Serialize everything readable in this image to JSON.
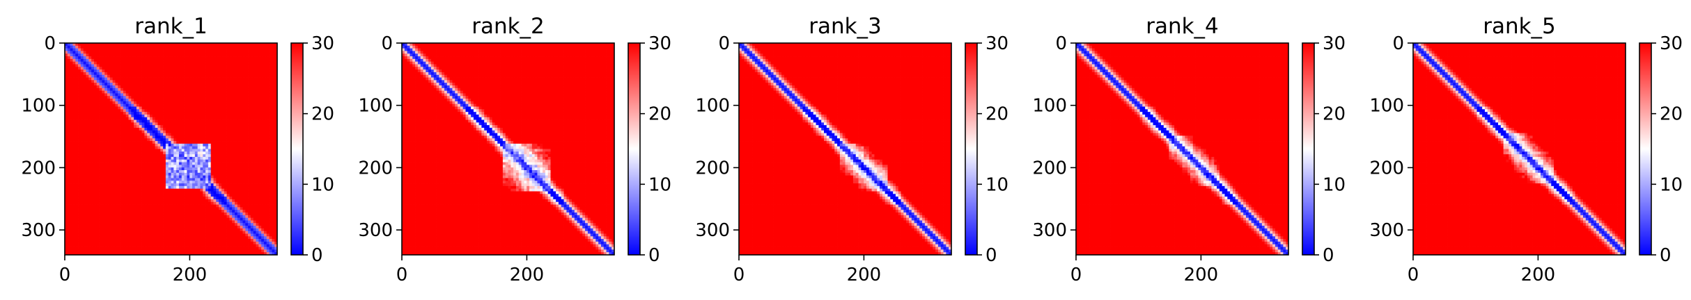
{
  "figure": {
    "background": "#ffffff"
  },
  "colormap": {
    "name": "bwr",
    "low": "#0000ff",
    "mid": "#ffffff",
    "high": "#ff0000"
  },
  "chart_data": [
    {
      "type": "heatmap",
      "title": "rank_1",
      "matrix_size": 340,
      "x_ticks": [
        0,
        200
      ],
      "y_ticks": [
        0,
        100,
        200,
        300
      ],
      "xlim": [
        0,
        340
      ],
      "ylim": [
        340,
        0
      ],
      "color_range": [
        0,
        30
      ],
      "colorbar_ticks": [
        0,
        10,
        20,
        30
      ],
      "low_distance_block": {
        "start": 160,
        "end": 235,
        "strength": 0.95
      },
      "diagonal_band_width": 9,
      "grid": false
    },
    {
      "type": "heatmap",
      "title": "rank_2",
      "matrix_size": 340,
      "x_ticks": [
        0,
        200
      ],
      "y_ticks": [
        0,
        100,
        200,
        300
      ],
      "xlim": [
        0,
        340
      ],
      "ylim": [
        340,
        0
      ],
      "color_range": [
        0,
        30
      ],
      "colorbar_ticks": [
        0,
        10,
        20,
        30
      ],
      "low_distance_block": {
        "start": 160,
        "end": 240,
        "strength": 0.6
      },
      "diagonal_band_width": 8,
      "grid": false
    },
    {
      "type": "heatmap",
      "title": "rank_3",
      "matrix_size": 340,
      "x_ticks": [
        0,
        200
      ],
      "y_ticks": [
        0,
        100,
        200,
        300
      ],
      "xlim": [
        0,
        340
      ],
      "ylim": [
        340,
        0
      ],
      "color_range": [
        0,
        30
      ],
      "colorbar_ticks": [
        0,
        10,
        20,
        30
      ],
      "low_distance_block": {
        "start": 160,
        "end": 240,
        "strength": 0.4
      },
      "diagonal_band_width": 8,
      "grid": false
    },
    {
      "type": "heatmap",
      "title": "rank_4",
      "matrix_size": 340,
      "x_ticks": [
        0,
        200
      ],
      "y_ticks": [
        0,
        100,
        200,
        300
      ],
      "xlim": [
        0,
        340
      ],
      "ylim": [
        340,
        0
      ],
      "color_range": [
        0,
        30
      ],
      "colorbar_ticks": [
        0,
        10,
        20,
        30
      ],
      "low_distance_block": {
        "start": 150,
        "end": 230,
        "strength": 0.35
      },
      "diagonal_band_width": 7,
      "grid": false
    },
    {
      "type": "heatmap",
      "title": "rank_5",
      "matrix_size": 340,
      "x_ticks": [
        0,
        200
      ],
      "y_ticks": [
        0,
        100,
        200,
        300
      ],
      "xlim": [
        0,
        340
      ],
      "ylim": [
        340,
        0
      ],
      "color_range": [
        0,
        30
      ],
      "colorbar_ticks": [
        0,
        10,
        20,
        30
      ],
      "low_distance_block": {
        "start": 145,
        "end": 225,
        "strength": 0.4
      },
      "diagonal_band_width": 8,
      "grid": false
    }
  ]
}
